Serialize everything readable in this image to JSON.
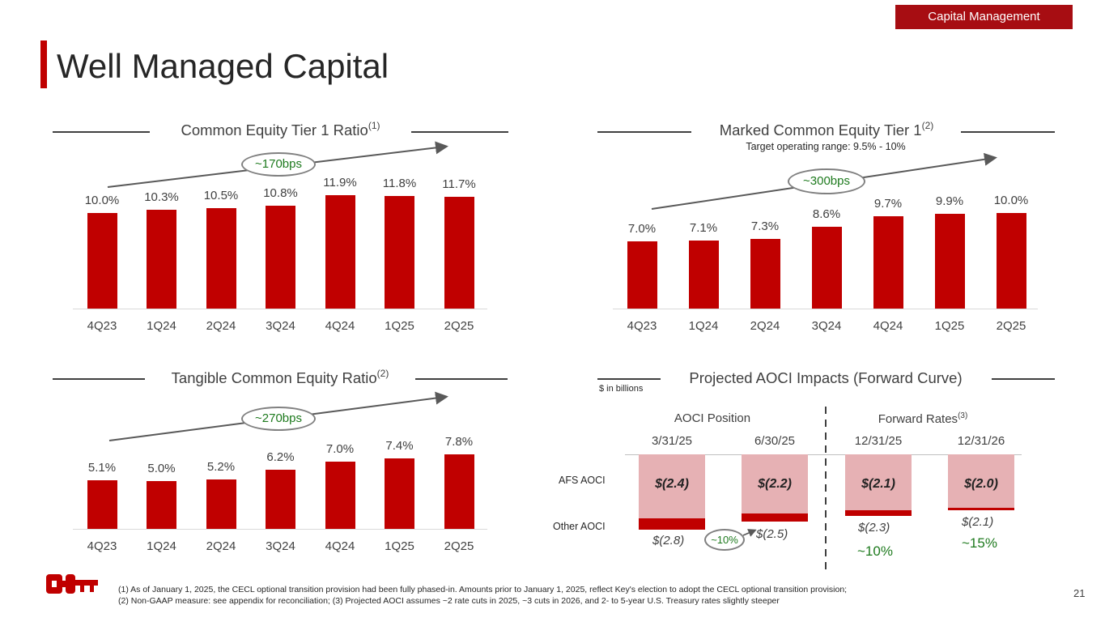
{
  "header": {
    "section_tag": "Capital Management",
    "title": "Well Managed Capital",
    "page_number": "21"
  },
  "cet1": {
    "title": "Common Equity Tier 1 Ratio",
    "sup": "(1)",
    "change_label": "~170bps",
    "chart_data": {
      "type": "bar",
      "categories": [
        "4Q23",
        "1Q24",
        "2Q24",
        "3Q24",
        "4Q24",
        "1Q25",
        "2Q25"
      ],
      "values": [
        10.0,
        10.3,
        10.5,
        10.8,
        11.9,
        11.8,
        11.7
      ],
      "labels": [
        "10.0%",
        "10.3%",
        "10.5%",
        "10.8%",
        "11.9%",
        "11.8%",
        "11.7%"
      ],
      "unit": "%"
    }
  },
  "marked": {
    "title": "Marked Common Equity Tier 1",
    "sup": "(2)",
    "subtitle": "Target operating range: 9.5% - 10%",
    "change_label": "~300bps",
    "chart_data": {
      "type": "bar",
      "categories": [
        "4Q23",
        "1Q24",
        "2Q24",
        "3Q24",
        "4Q24",
        "1Q25",
        "2Q25"
      ],
      "values": [
        7.0,
        7.1,
        7.3,
        8.6,
        9.7,
        9.9,
        10.0
      ],
      "labels": [
        "7.0%",
        "7.1%",
        "7.3%",
        "8.6%",
        "9.7%",
        "9.9%",
        "10.0%"
      ],
      "unit": "%"
    }
  },
  "tce": {
    "title": "Tangible Common Equity Ratio",
    "sup": "(2)",
    "change_label": "~270bps",
    "chart_data": {
      "type": "bar",
      "categories": [
        "4Q23",
        "1Q24",
        "2Q24",
        "3Q24",
        "4Q24",
        "1Q25",
        "2Q25"
      ],
      "values": [
        5.1,
        5.0,
        5.2,
        6.2,
        7.0,
        7.4,
        7.8
      ],
      "labels": [
        "5.1%",
        "5.0%",
        "5.2%",
        "6.2%",
        "7.0%",
        "7.4%",
        "7.8%"
      ],
      "unit": "%"
    }
  },
  "aoci": {
    "title": "Projected AOCI Impacts (Forward Curve)",
    "units_note": "$ in billions",
    "group_position": "AOCI Position",
    "group_forward": "Forward Rates",
    "group_forward_sup": "(3)",
    "row_afs": "AFS AOCI",
    "row_other": "Other AOCI",
    "oval_label": "~10%",
    "chart_data": {
      "type": "bar",
      "categories": [
        "3/31/25",
        "6/30/25",
        "12/31/25",
        "12/31/26"
      ],
      "series": [
        {
          "name": "AFS AOCI",
          "values": [
            -2.4,
            -2.2,
            -2.1,
            -2.0
          ],
          "labels": [
            "$(2.4)",
            "$(2.2)",
            "$(2.1)",
            "$(2.0)"
          ]
        },
        {
          "name": "Other AOCI",
          "values": [
            -0.4,
            -0.3,
            -0.2,
            -0.1
          ]
        }
      ],
      "totals": [
        "$(2.8)",
        "$(2.5)",
        "$(2.3)",
        "$(2.1)"
      ],
      "pct_changes": [
        "",
        "",
        "~10%",
        "~15%"
      ]
    }
  },
  "footnote": {
    "line1": "(1) As of January 1, 2025, the CECL optional transition provision had been fully phased-in. Amounts prior to January 1, 2025, reflect Key's election to adopt the CECL optional transition provision;",
    "line2": "(2) Non-GAAP measure: see appendix for reconciliation; (3) Projected AOCI assumes ~2 rate cuts in 2025, ~3 cuts in 2026, and 2- to 5-year U.S. Treasury rates slightly steeper"
  }
}
